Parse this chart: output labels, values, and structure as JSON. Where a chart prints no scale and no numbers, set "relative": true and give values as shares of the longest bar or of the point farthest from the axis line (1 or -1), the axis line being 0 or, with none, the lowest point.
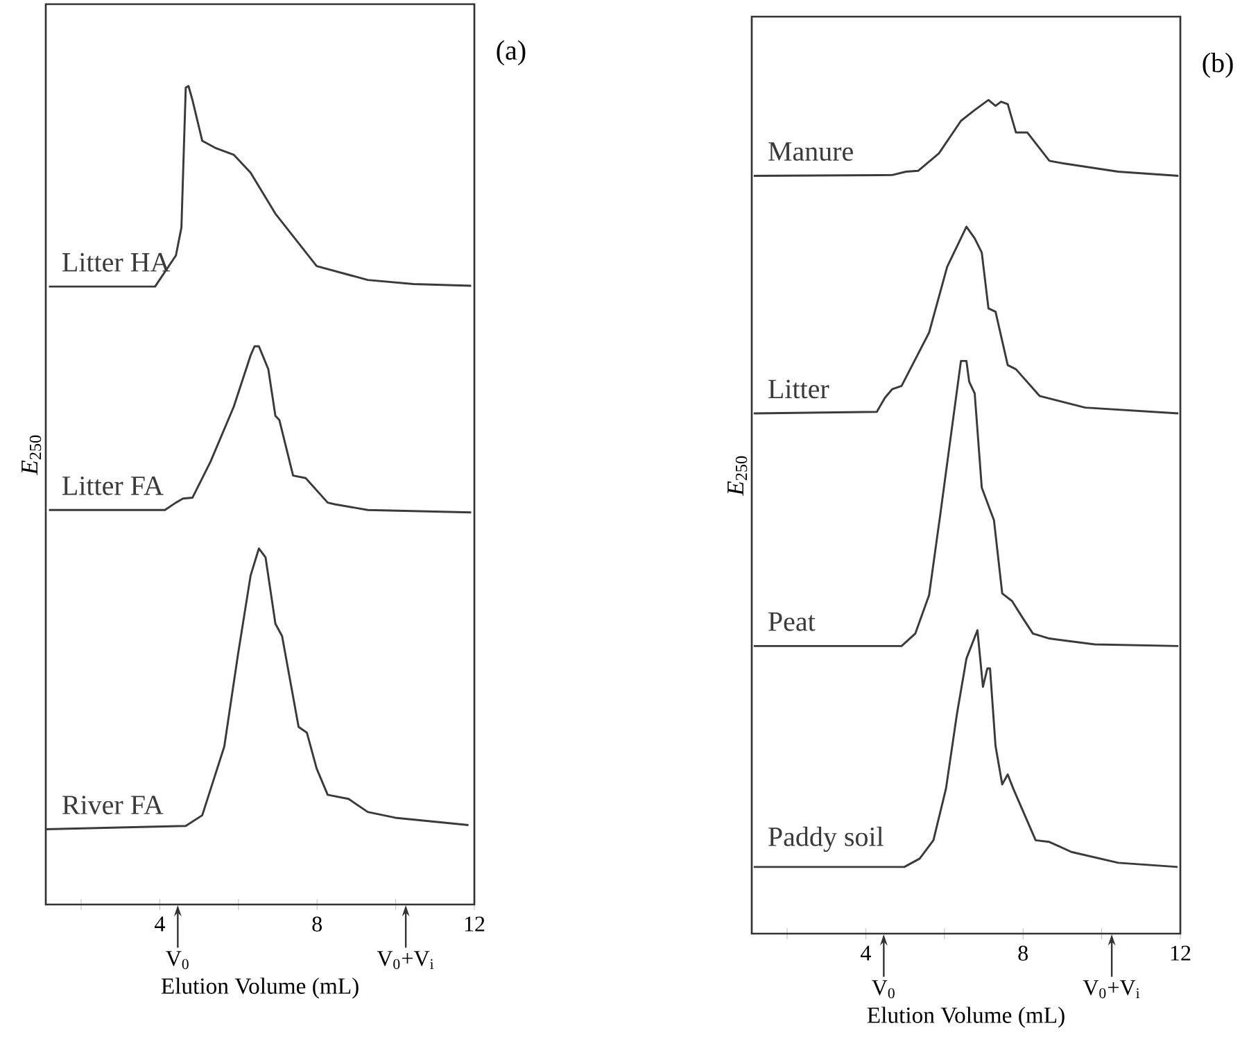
{
  "chart_data": [
    {
      "type": "line",
      "title": "(a)",
      "xlabel": "Elution Volume (mL)",
      "ylabel": "*E*$_{250}$",
      "relative": true,
      "xlim": [
        1.1,
        12
      ],
      "xticks": [
        {
          "value": 2,
          "label": null
        },
        4,
        {
          "value": 6,
          "label": null
        },
        8,
        {
          "value": 10,
          "label": null
        },
        12
      ],
      "annotations": [
        "V$_{0}$",
        "V$_{0}$+V$_{i}$"
      ],
      "series": [
        {
          "name": "Litter HA",
          "color": "#3a3a3a",
          "x": [
            1.18,
            3.88,
            4.41,
            4.55,
            4.66,
            4.73,
            4.83,
            5.08,
            5.43,
            5.88,
            6.31,
            6.94,
            7.99,
            9.29,
            10.45,
            11.92
          ],
          "values": [
            0.755,
            0.755,
            0.793,
            0.827,
            0.998,
            1.0,
            0.983,
            0.933,
            0.924,
            0.916,
            0.894,
            0.844,
            0.78,
            0.763,
            0.758,
            0.756
          ]
        },
        {
          "name": "Litter FA",
          "color": "#3a3a3a",
          "x": [
            1.18,
            4.13,
            4.41,
            4.59,
            4.83,
            5.29,
            5.88,
            6.31,
            6.41,
            6.52,
            6.76,
            6.94,
            7.04,
            7.39,
            7.71,
            8.27,
            8.45,
            9.29,
            11.92
          ],
          "values": [
            0.482,
            0.482,
            0.491,
            0.496,
            0.497,
            0.541,
            0.608,
            0.671,
            0.682,
            0.682,
            0.654,
            0.597,
            0.592,
            0.524,
            0.521,
            0.491,
            0.489,
            0.482,
            0.479
          ]
        },
        {
          "name": "River FA",
          "color": "#3a3a3a",
          "x": [
            1.1,
            4.66,
            5.08,
            5.64,
            5.99,
            6.31,
            6.52,
            6.69,
            6.94,
            7.11,
            7.53,
            7.74,
            7.99,
            8.27,
            8.8,
            9.29,
            9.99,
            11.85
          ],
          "values": [
            0.092,
            0.096,
            0.109,
            0.193,
            0.306,
            0.402,
            0.435,
            0.424,
            0.343,
            0.328,
            0.217,
            0.21,
            0.166,
            0.134,
            0.129,
            0.113,
            0.106,
            0.097
          ]
        }
      ]
    },
    {
      "type": "line",
      "title": "(b)",
      "xlabel": "Elution Volume (mL)",
      "ylabel": "*E*$_{250}$",
      "relative": true,
      "xlim": [
        1.1,
        12
      ],
      "xticks": [
        {
          "value": 2,
          "label": null
        },
        4,
        {
          "value": 6,
          "label": null
        },
        8,
        {
          "value": 10,
          "label": null
        },
        12
      ],
      "annotations": [
        "V$_{0}$",
        "V$_{0}$+V$_{i}$"
      ],
      "series": [
        {
          "name": "Manure",
          "color": "#3a3a3a",
          "x": [
            1.15,
            4.67,
            5.02,
            5.33,
            5.86,
            6.42,
            6.77,
            7.12,
            7.3,
            7.44,
            7.61,
            7.82,
            8.11,
            8.67,
            9.02,
            10.42,
            11.95
          ],
          "values": [
            0.909,
            0.91,
            0.914,
            0.915,
            0.936,
            0.975,
            0.988,
            1.0,
            0.993,
            0.998,
            0.995,
            0.961,
            0.961,
            0.927,
            0.924,
            0.914,
            0.909
          ]
        },
        {
          "name": "Litter",
          "color": "#3a3a3a",
          "x": [
            1.15,
            4.28,
            4.49,
            4.67,
            4.91,
            5.61,
            6.07,
            6.56,
            6.77,
            6.95,
            7.12,
            7.3,
            7.61,
            7.82,
            8.42,
            9.58,
            11.95
          ],
          "values": [
            0.624,
            0.626,
            0.643,
            0.653,
            0.657,
            0.721,
            0.8,
            0.848,
            0.834,
            0.817,
            0.75,
            0.746,
            0.682,
            0.677,
            0.645,
            0.631,
            0.624
          ]
        },
        {
          "name": "Peat",
          "color": "#3a3a3a",
          "x": [
            1.15,
            4.91,
            5.26,
            5.61,
            5.86,
            5.89,
            6.42,
            6.56,
            6.63,
            6.77,
            6.95,
            7.26,
            7.47,
            7.72,
            7.96,
            8.25,
            8.67,
            9.82,
            11.95
          ],
          "values": [
            0.345,
            0.345,
            0.36,
            0.406,
            0.491,
            0.501,
            0.687,
            0.687,
            0.662,
            0.648,
            0.535,
            0.496,
            0.408,
            0.399,
            0.381,
            0.36,
            0.354,
            0.347,
            0.345
          ]
        },
        {
          "name": "Paddy soil",
          "color": "#3a3a3a",
          "x": [
            1.15,
            4.98,
            5.37,
            5.72,
            6.04,
            6.32,
            6.56,
            6.84,
            6.98,
            7.09,
            7.16,
            7.3,
            7.47,
            7.61,
            7.75,
            8.32,
            8.67,
            9.23,
            10.42,
            11.93
          ],
          "values": [
            0.08,
            0.08,
            0.09,
            0.112,
            0.174,
            0.264,
            0.33,
            0.364,
            0.296,
            0.318,
            0.318,
            0.225,
            0.179,
            0.191,
            0.174,
            0.112,
            0.11,
            0.098,
            0.085,
            0.08
          ]
        }
      ]
    }
  ]
}
